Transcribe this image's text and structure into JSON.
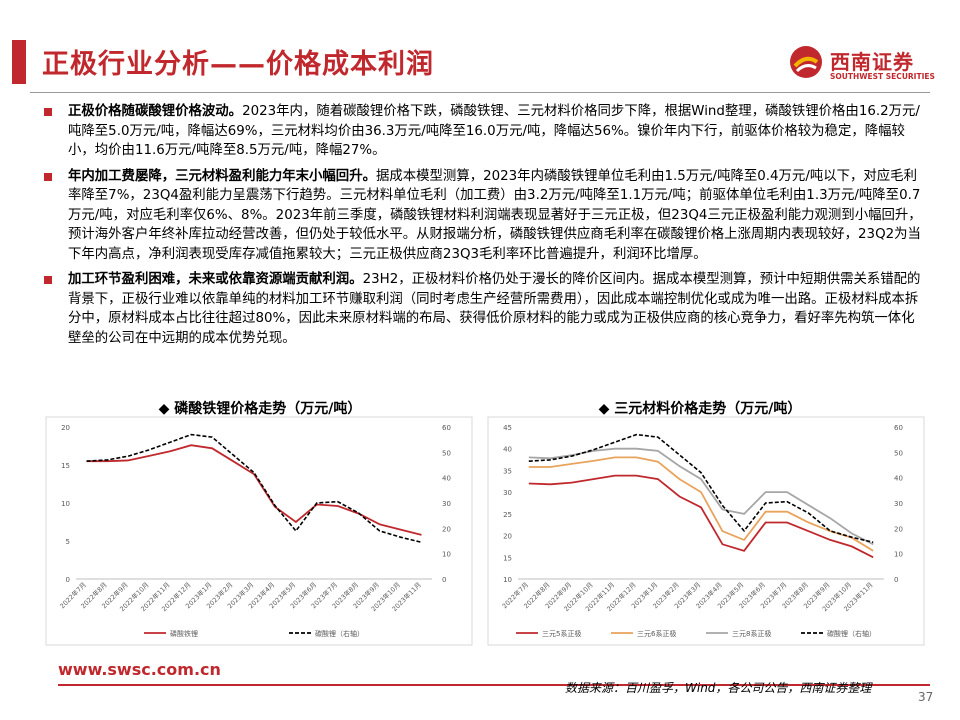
{
  "header": {
    "title": "正极行业分析——价格成本利润",
    "logo_cn": "西南证券",
    "logo_en": "SOUTHWEST SECURITIES"
  },
  "bullets": [
    {
      "lead": "正极价格随碳酸锂价格波动。",
      "body": "2023年内，随着碳酸锂价格下跌，磷酸铁锂、三元材料价格同步下降，根据Wind整理，磷酸铁锂价格由16.2万元/吨降至5.0万元/吨，降幅达69%，三元材料均价由36.3万元/吨降至16.0万元/吨，降幅达56%。镍价年内下行，前驱体价格较为稳定，降幅较小，均价由11.6万元/吨降至8.5万元/吨，降幅27%。"
    },
    {
      "lead": "年内加工费屡降，三元材料盈利能力年末小幅回升。",
      "body": "据成本模型测算，2023年内磷酸铁锂单位毛利由1.5万元/吨降至0.4万元/吨以下，对应毛利率降至7%，23Q4盈利能力呈震荡下行趋势。三元材料单位毛利（加工费）由3.2万元/吨降至1.1万元/吨；前驱体单位毛利由1.3万元/吨降至0.7万元/吨，对应毛利率仅6%、8%。2023年前三季度，磷酸铁锂材料利润端表现显著好于三元正极，但23Q4三元正极盈利能力观测到小幅回升，预计海外客户年终补库拉动经营改善，但仍处于较低水平。从财报端分析，磷酸铁锂供应商毛利率在碳酸锂价格上涨周期内表现较好，23Q2为当下年内高点，净利润表现受库存减值拖累较大；三元正极供应商23Q3毛利率环比普遍提升，利润环比增厚。"
    },
    {
      "lead": "加工环节盈利困难，未来或依靠资源端贡献利润。",
      "body": "23H2，正极材料价格仍处于漫长的降价区间内。据成本模型测算，预计中短期供需关系错配的背景下，正极行业难以依靠单纯的材料加工环节赚取利润（同时考虑生产经营所需费用），因此成本端控制优化或成为唯一出路。正极材料成本拆分中，原材料成本占比往往超过80%，因此未来原材料端的布局、获得低价原材料的能力或成为正极供应商的核心竞争力，看好率先构筑一体化壁垒的公司在中远期的成本优势兑现。"
    }
  ],
  "chart_titles": [
    "◆ 磷酸铁锂价格走势（万元/吨）",
    "◆ 三元材料价格走势（万元/吨）"
  ],
  "footer": {
    "website": "www.swsc.com.cn",
    "source": "数据来源：百川盈孚，Wind，各公司公告，西南证券整理",
    "page": "37"
  },
  "chart_data": [
    {
      "type": "line",
      "title": "磷酸铁锂价格走势（万元/吨）",
      "categories": [
        "2022年7月",
        "2022年8月",
        "2022年9月",
        "2022年10月",
        "2022年11月",
        "2022年12月",
        "2023年1月",
        "2023年2月",
        "2023年3月",
        "2023年4月",
        "2023年5月",
        "2023年6月",
        "2023年7月",
        "2023年8月",
        "2023年9月",
        "2023年10月",
        "2023年11月"
      ],
      "ylim": [
        0,
        20
      ],
      "yticks": [
        0,
        5,
        10,
        15,
        20
      ],
      "y2lim": [
        0,
        60
      ],
      "y2ticks": [
        0,
        10,
        20,
        30,
        40,
        50,
        60
      ],
      "series": [
        {
          "name": "磷酸铁锂",
          "axis": "left",
          "color": "#c0282d",
          "dash": false,
          "values": [
            15.5,
            15.5,
            15.6,
            16.2,
            16.8,
            17.6,
            17.2,
            15.5,
            13.8,
            9.5,
            7.5,
            9.8,
            9.6,
            8.6,
            7.2,
            6.5,
            5.8
          ]
        },
        {
          "name": "碳酸锂（右轴）",
          "axis": "right",
          "color": "#000000",
          "dash": true,
          "values": [
            46.5,
            47,
            48.5,
            51,
            54,
            57,
            56,
            49,
            42,
            29,
            19,
            30,
            30.5,
            26,
            19,
            16.5,
            14.5
          ]
        }
      ]
    },
    {
      "type": "line",
      "title": "三元材料价格走势（万元/吨）",
      "categories": [
        "2022年7月",
        "2022年8月",
        "2022年9月",
        "2022年10月",
        "2022年11月",
        "2022年12月",
        "2023年1月",
        "2023年2月",
        "2023年3月",
        "2023年4月",
        "2023年5月",
        "2023年6月",
        "2023年7月",
        "2023年8月",
        "2023年9月",
        "2023年10月",
        "2023年11月"
      ],
      "ylim": [
        10,
        45
      ],
      "yticks": [
        10,
        15,
        20,
        25,
        30,
        35,
        40,
        45
      ],
      "y2lim": [
        0,
        60
      ],
      "y2ticks": [
        0,
        10,
        20,
        30,
        40,
        50,
        60
      ],
      "series": [
        {
          "name": "三元5系正极",
          "axis": "left",
          "color": "#c0282d",
          "dash": false,
          "values": [
            32,
            31.8,
            32.2,
            33,
            33.8,
            33.8,
            33,
            29,
            26.5,
            18,
            16.5,
            23,
            23,
            21,
            19,
            17.5,
            15
          ]
        },
        {
          "name": "三元6系正极",
          "axis": "left",
          "color": "#e8a35c",
          "dash": false,
          "values": [
            35.8,
            35.8,
            36.5,
            37.2,
            38,
            38,
            37,
            33,
            30,
            21,
            19,
            25.5,
            25.5,
            23,
            21,
            19.5,
            16.5
          ]
        },
        {
          "name": "三元8系正极",
          "axis": "left",
          "color": "#a6a6a6",
          "dash": false,
          "values": [
            38,
            37.8,
            38.5,
            39.5,
            40,
            40,
            39.5,
            36,
            33,
            26,
            25,
            30,
            30,
            27,
            24,
            20.5,
            18
          ]
        },
        {
          "name": "碳酸锂（右轴）",
          "axis": "right",
          "color": "#000000",
          "dash": true,
          "values": [
            46.5,
            47,
            48.5,
            51,
            54,
            57,
            56,
            49,
            42,
            29,
            19,
            30,
            30.5,
            26,
            19,
            16.5,
            14.5
          ]
        }
      ]
    }
  ]
}
